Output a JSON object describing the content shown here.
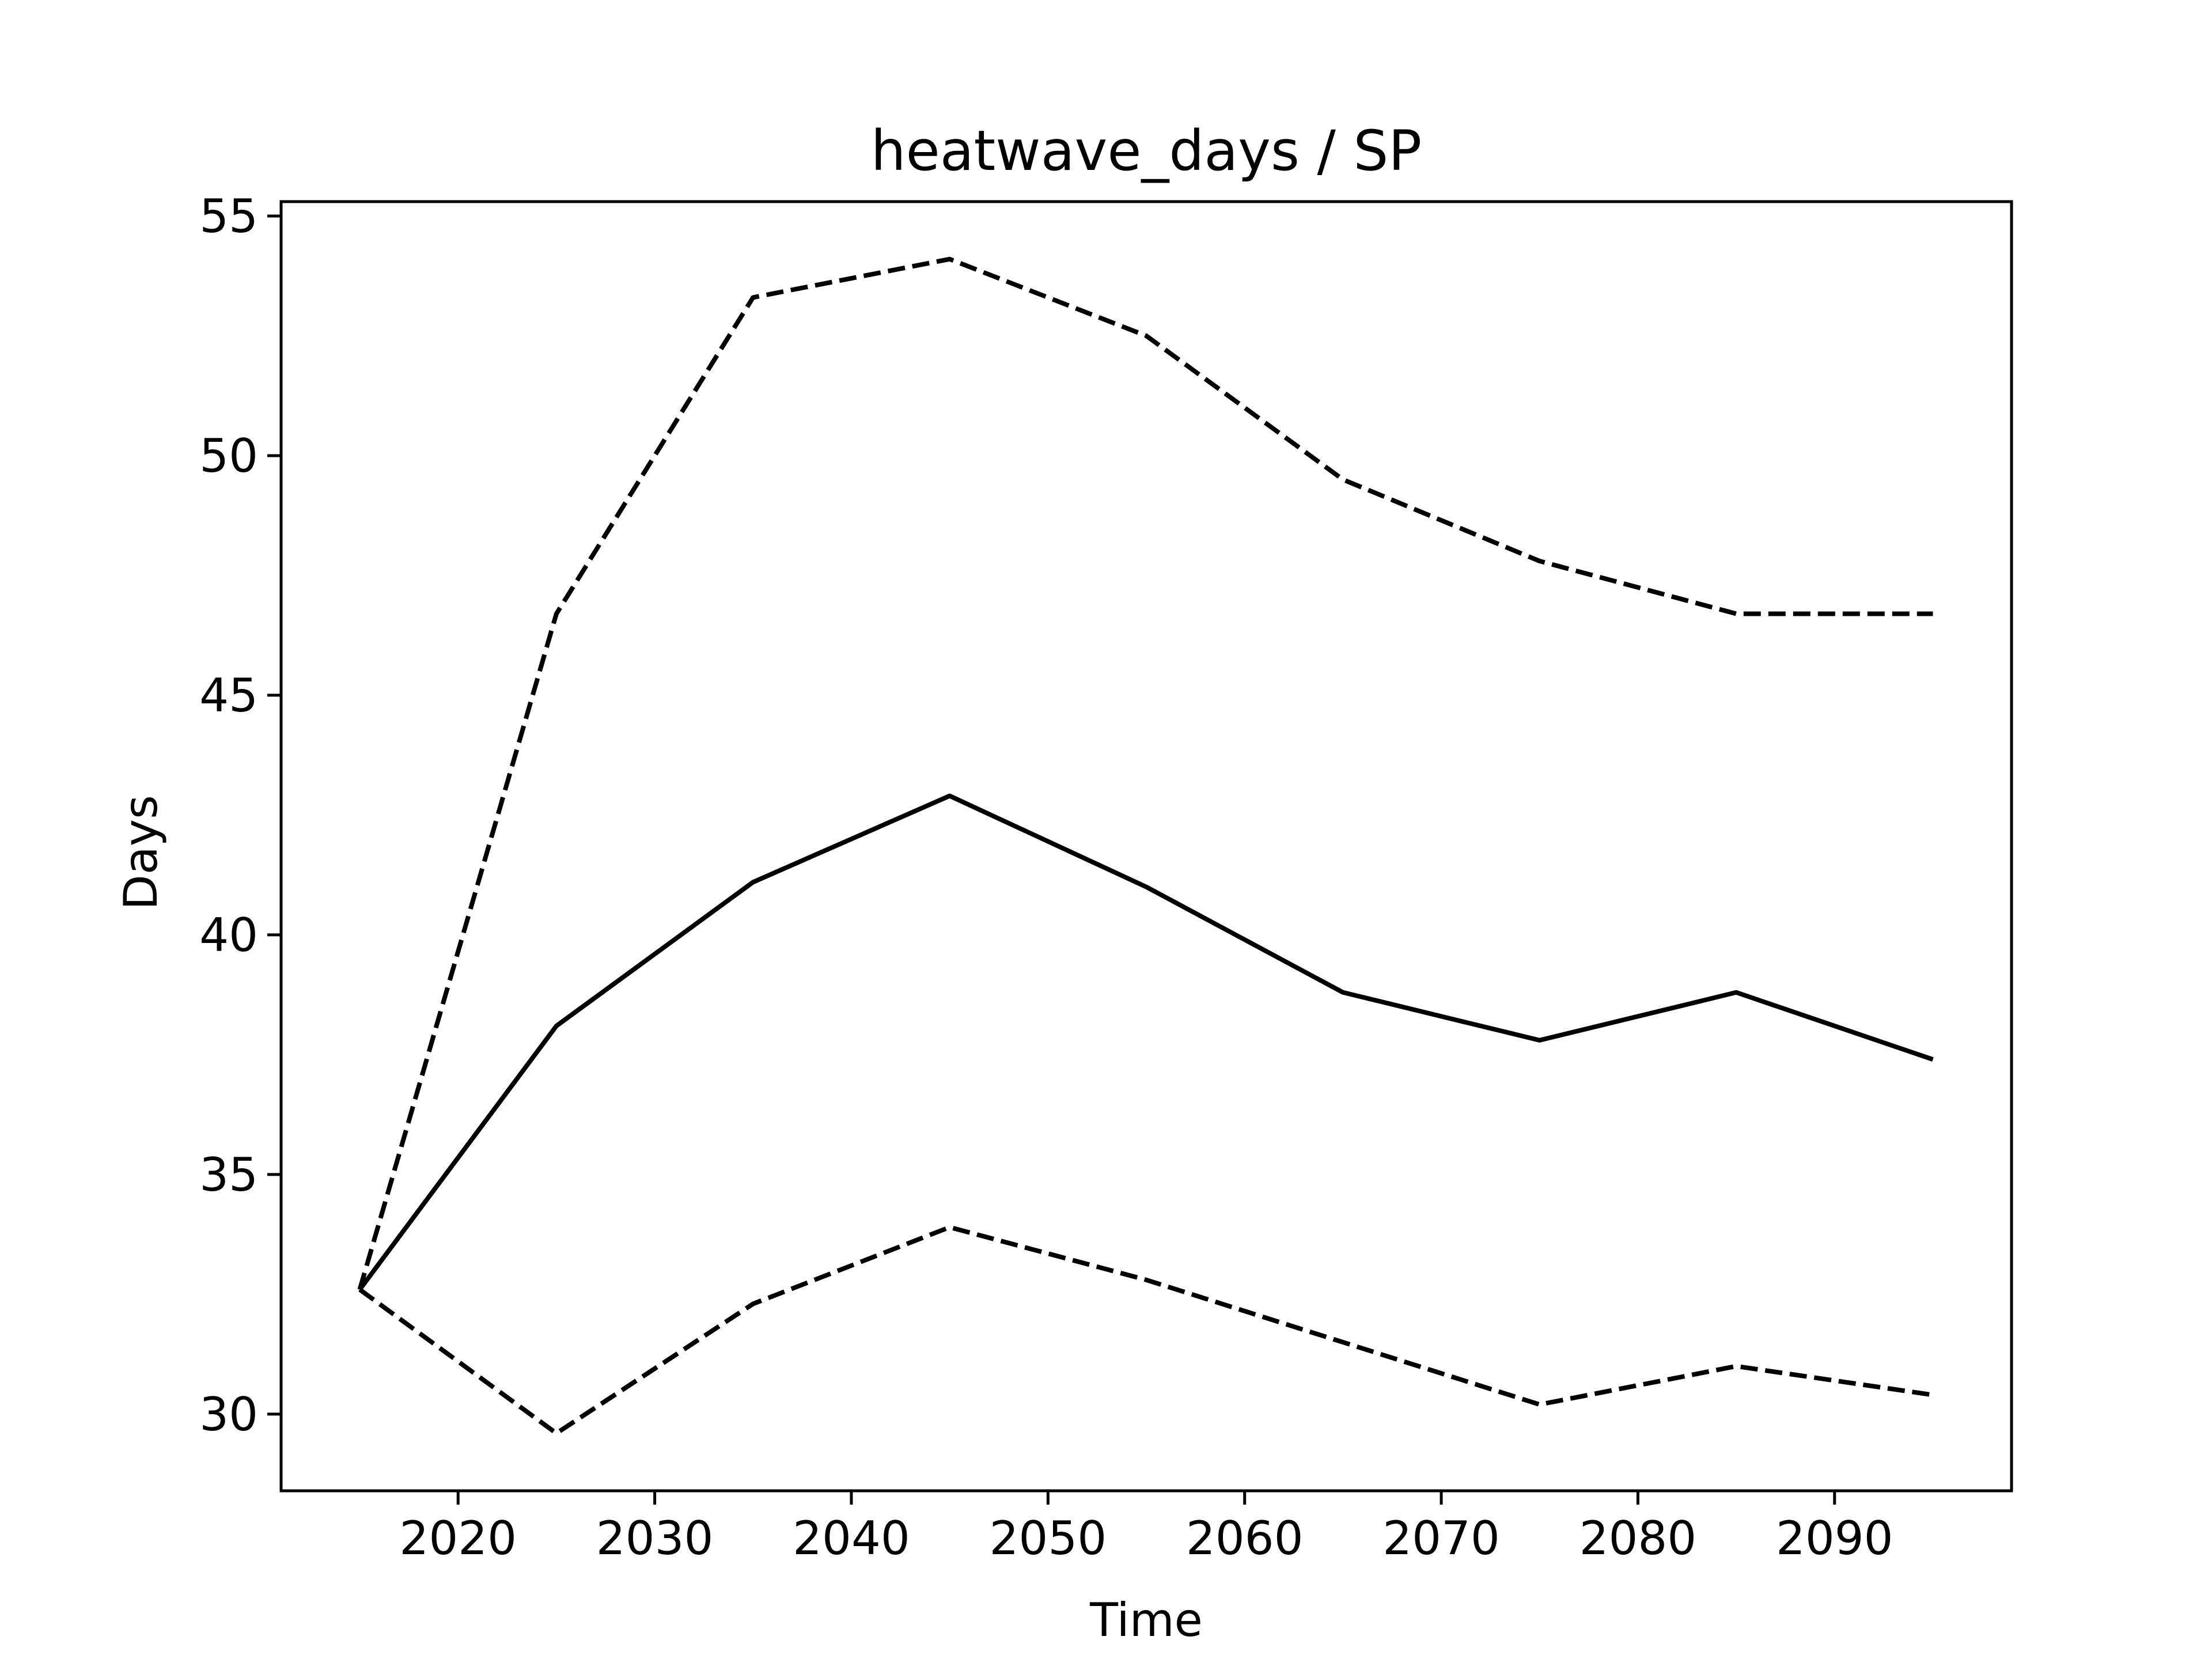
{
  "chart_data": {
    "type": "line",
    "title": "heatwave_days / SP",
    "xlabel": "Time",
    "ylabel": "Days",
    "xlim": [
      2011,
      2099
    ],
    "ylim": [
      28.4,
      55.3
    ],
    "x_ticks": [
      2020,
      2030,
      2040,
      2050,
      2060,
      2070,
      2080,
      2090
    ],
    "y_ticks": [
      30,
      35,
      40,
      45,
      50,
      55
    ],
    "grid": false,
    "color": "#000000",
    "x": [
      2015,
      2025,
      2035,
      2045,
      2055,
      2065,
      2075,
      2085,
      2095
    ],
    "series": [
      {
        "style": "solid",
        "values": [
          32.6,
          38.1,
          41.1,
          42.9,
          41.0,
          38.8,
          37.8,
          38.8,
          37.4
        ]
      },
      {
        "style": "dashed",
        "values": [
          32.6,
          46.7,
          53.3,
          54.1,
          52.5,
          49.5,
          47.8,
          46.7,
          46.7
        ]
      },
      {
        "style": "dashed",
        "values": [
          32.6,
          29.6,
          32.3,
          33.9,
          32.8,
          31.5,
          30.2,
          31.0,
          30.4
        ]
      }
    ]
  }
}
